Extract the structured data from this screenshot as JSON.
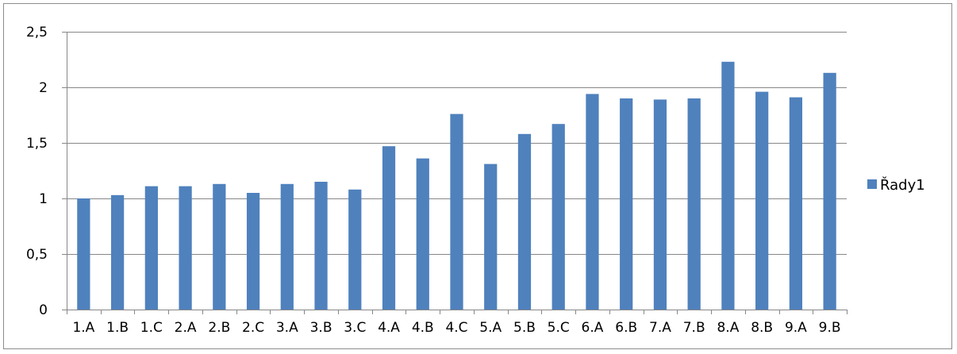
{
  "chart_data": {
    "type": "bar",
    "categories": [
      "1.A",
      "1.B",
      "1.C",
      "2.A",
      "2.B",
      "2.C",
      "3.A",
      "3.B",
      "3.C",
      "4.A",
      "4.B",
      "4.C",
      "5.A",
      "5.B",
      "5.C",
      "6.A",
      "6.B",
      "7.A",
      "7.B",
      "8.A",
      "8.B",
      "9.A",
      "9.B"
    ],
    "series": [
      {
        "name": "Řady1",
        "values": [
          1.0,
          1.03,
          1.11,
          1.11,
          1.13,
          1.05,
          1.13,
          1.15,
          1.08,
          1.47,
          1.36,
          1.76,
          1.31,
          1.58,
          1.67,
          1.94,
          1.9,
          1.89,
          1.9,
          2.23,
          1.96,
          1.91,
          2.13
        ],
        "color": "#4f81bd"
      }
    ],
    "ylim": [
      0,
      2.5
    ],
    "yticks": [
      "0",
      "0,5",
      "1",
      "1,5",
      "2",
      "2,5"
    ],
    "ytick_values": [
      0,
      0.5,
      1,
      1.5,
      2,
      2.5
    ],
    "grid": true,
    "legend_position": "right",
    "title": "",
    "xlabel": "",
    "ylabel": ""
  },
  "colors": {
    "bar": "#4f81bd",
    "grid": "#878787",
    "axis": "#878787"
  }
}
